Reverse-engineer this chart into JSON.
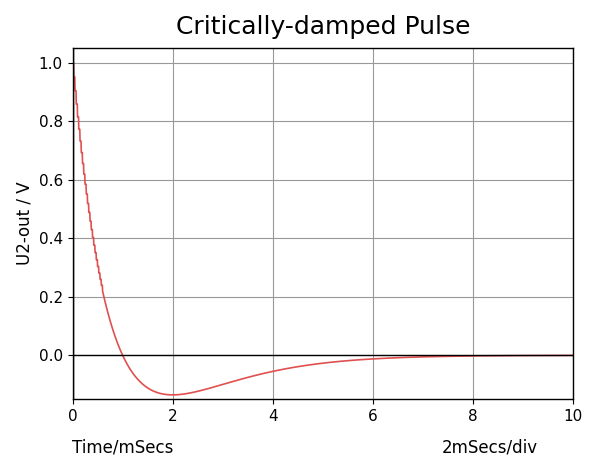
{
  "title": "Critically-damped Pulse",
  "xlabel_left": "Time/mSecs",
  "xlabel_right": "2mSecs/div",
  "ylabel": "U2-out / V",
  "xlim": [
    0,
    10
  ],
  "ylim": [
    -0.15,
    1.05
  ],
  "xticks": [
    0,
    2,
    4,
    6,
    8,
    10
  ],
  "yticks": [
    0.0,
    0.2,
    0.4,
    0.6,
    0.8,
    1.0
  ],
  "line_color": "#e05050",
  "bg_color": "#ffffff",
  "title_fontsize": 18,
  "label_fontsize": 12,
  "tick_fontsize": 11,
  "grid_color": "#999999",
  "omega": 3.5,
  "alpha": 3.5,
  "t_max": 10.0,
  "num_points": 2000
}
